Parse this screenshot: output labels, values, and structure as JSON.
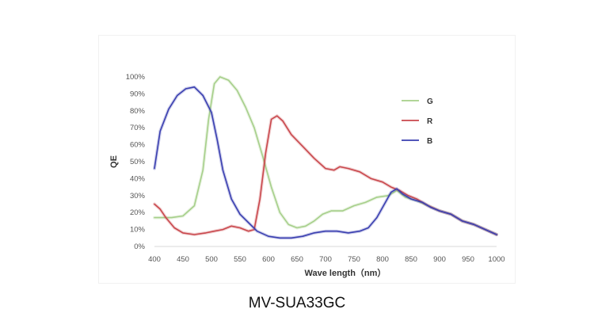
{
  "caption": "MV-SUA33GC",
  "chart_data": {
    "type": "line",
    "title": "",
    "xlabel": "Wave length（nm）",
    "ylabel": "QE",
    "xlim": [
      400,
      1000
    ],
    "ylim": [
      0,
      100
    ],
    "x_ticks": [
      "400",
      "450",
      "500",
      "550",
      "600",
      "650",
      "700",
      "750",
      "800",
      "850",
      "900",
      "950",
      "1000"
    ],
    "y_ticks": [
      "0%",
      "10%",
      "20%",
      "30%",
      "40%",
      "50%",
      "60%",
      "70%",
      "80%",
      "90%",
      "100%"
    ],
    "grid": false,
    "legend": "right",
    "series": [
      {
        "name": "G",
        "color": "#a6cf8a",
        "points": [
          [
            400,
            17
          ],
          [
            430,
            17
          ],
          [
            450,
            18
          ],
          [
            470,
            24
          ],
          [
            485,
            45
          ],
          [
            495,
            75
          ],
          [
            505,
            96
          ],
          [
            515,
            100
          ],
          [
            530,
            98
          ],
          [
            545,
            92
          ],
          [
            560,
            82
          ],
          [
            575,
            70
          ],
          [
            590,
            53
          ],
          [
            605,
            35
          ],
          [
            620,
            20
          ],
          [
            635,
            13
          ],
          [
            650,
            11
          ],
          [
            665,
            12
          ],
          [
            680,
            15
          ],
          [
            695,
            19
          ],
          [
            710,
            21
          ],
          [
            730,
            21
          ],
          [
            750,
            24
          ],
          [
            770,
            26
          ],
          [
            790,
            29
          ],
          [
            810,
            30
          ],
          [
            825,
            33
          ],
          [
            840,
            29
          ],
          [
            860,
            27
          ],
          [
            880,
            24
          ],
          [
            900,
            21
          ],
          [
            920,
            19
          ],
          [
            940,
            15
          ],
          [
            960,
            13
          ],
          [
            980,
            10
          ],
          [
            1000,
            7
          ]
        ]
      },
      {
        "name": "R",
        "color": "#c9474c",
        "points": [
          [
            400,
            25
          ],
          [
            410,
            22
          ],
          [
            420,
            17
          ],
          [
            435,
            11
          ],
          [
            450,
            8
          ],
          [
            470,
            7
          ],
          [
            490,
            8
          ],
          [
            505,
            9
          ],
          [
            520,
            10
          ],
          [
            535,
            12
          ],
          [
            550,
            11
          ],
          [
            565,
            9
          ],
          [
            575,
            10
          ],
          [
            585,
            28
          ],
          [
            595,
            55
          ],
          [
            605,
            75
          ],
          [
            615,
            77
          ],
          [
            625,
            74
          ],
          [
            640,
            66
          ],
          [
            660,
            59
          ],
          [
            680,
            52
          ],
          [
            700,
            46
          ],
          [
            715,
            45
          ],
          [
            725,
            47
          ],
          [
            740,
            46
          ],
          [
            760,
            44
          ],
          [
            780,
            40
          ],
          [
            800,
            38
          ],
          [
            815,
            35
          ],
          [
            830,
            33
          ],
          [
            845,
            30
          ],
          [
            860,
            28
          ],
          [
            880,
            24
          ],
          [
            900,
            21
          ],
          [
            920,
            19
          ],
          [
            940,
            15
          ],
          [
            960,
            13
          ],
          [
            980,
            10
          ],
          [
            1000,
            7
          ]
        ]
      },
      {
        "name": "B",
        "color": "#3a3fb0",
        "points": [
          [
            400,
            46
          ],
          [
            410,
            68
          ],
          [
            425,
            81
          ],
          [
            440,
            89
          ],
          [
            455,
            93
          ],
          [
            470,
            94
          ],
          [
            485,
            89
          ],
          [
            500,
            79
          ],
          [
            510,
            63
          ],
          [
            520,
            45
          ],
          [
            535,
            28
          ],
          [
            550,
            19
          ],
          [
            565,
            14
          ],
          [
            580,
            9
          ],
          [
            600,
            6
          ],
          [
            620,
            5
          ],
          [
            640,
            5
          ],
          [
            660,
            6
          ],
          [
            680,
            8
          ],
          [
            700,
            9
          ],
          [
            720,
            9
          ],
          [
            740,
            8
          ],
          [
            760,
            9
          ],
          [
            775,
            11
          ],
          [
            790,
            17
          ],
          [
            805,
            26
          ],
          [
            815,
            32
          ],
          [
            825,
            34
          ],
          [
            835,
            31
          ],
          [
            850,
            28
          ],
          [
            870,
            26
          ],
          [
            885,
            23
          ],
          [
            900,
            21
          ],
          [
            920,
            19
          ],
          [
            940,
            15
          ],
          [
            960,
            13
          ],
          [
            980,
            10
          ],
          [
            1000,
            7
          ]
        ]
      }
    ]
  }
}
